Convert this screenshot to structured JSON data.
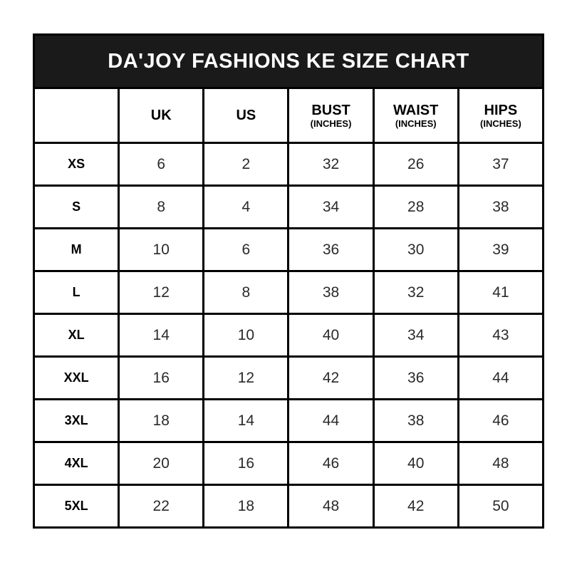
{
  "title": "DA'JOY FASHIONS KE SIZE CHART",
  "colors": {
    "title_bar_bg": "#1b1a1a",
    "title_text": "#ffffff",
    "border": "#000000",
    "cell_bg": "#ffffff",
    "number_text": "#2a2a2a"
  },
  "table": {
    "columns": [
      {
        "label": "",
        "sublabel": ""
      },
      {
        "label": "UK",
        "sublabel": ""
      },
      {
        "label": "US",
        "sublabel": ""
      },
      {
        "label": "BUST",
        "sublabel": "(INCHES)"
      },
      {
        "label": "WAIST",
        "sublabel": "(INCHES)"
      },
      {
        "label": "HIPS",
        "sublabel": "(INCHES)"
      }
    ],
    "rows": [
      {
        "size": "XS",
        "uk": "6",
        "us": "2",
        "bust": "32",
        "waist": "26",
        "hips": "37"
      },
      {
        "size": "S",
        "uk": "8",
        "us": "4",
        "bust": "34",
        "waist": "28",
        "hips": "38"
      },
      {
        "size": "M",
        "uk": "10",
        "us": "6",
        "bust": "36",
        "waist": "30",
        "hips": "39"
      },
      {
        "size": "L",
        "uk": "12",
        "us": "8",
        "bust": "38",
        "waist": "32",
        "hips": "41"
      },
      {
        "size": "XL",
        "uk": "14",
        "us": "10",
        "bust": "40",
        "waist": "34",
        "hips": "43"
      },
      {
        "size": "XXL",
        "uk": "16",
        "us": "12",
        "bust": "42",
        "waist": "36",
        "hips": "44"
      },
      {
        "size": "3XL",
        "uk": "18",
        "us": "14",
        "bust": "44",
        "waist": "38",
        "hips": "46"
      },
      {
        "size": "4XL",
        "uk": "20",
        "us": "16",
        "bust": "46",
        "waist": "40",
        "hips": "48"
      },
      {
        "size": "5XL",
        "uk": "22",
        "us": "18",
        "bust": "48",
        "waist": "42",
        "hips": "50"
      }
    ]
  }
}
